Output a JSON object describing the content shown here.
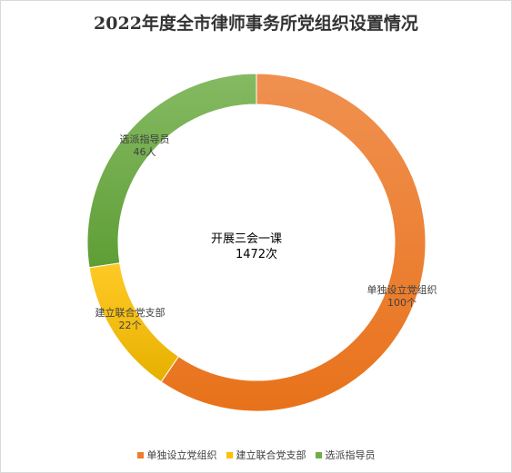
{
  "chart_data": {
    "type": "pie",
    "title": "2022年度全市律师事务所党组织设置情况",
    "center_text": {
      "line1": "开展三会一课",
      "line2": "1472次"
    },
    "slices": [
      {
        "name": "单独设立党组织",
        "value": 100,
        "value_label": "100个",
        "color": "#ED7D31"
      },
      {
        "name": "建立联合党支部",
        "value": 22,
        "value_label": "22个",
        "color": "#FFC000"
      },
      {
        "name": "选派指导员",
        "value": 46,
        "value_label": "46人",
        "color": "#70AD47"
      }
    ],
    "legend_position": "bottom"
  }
}
